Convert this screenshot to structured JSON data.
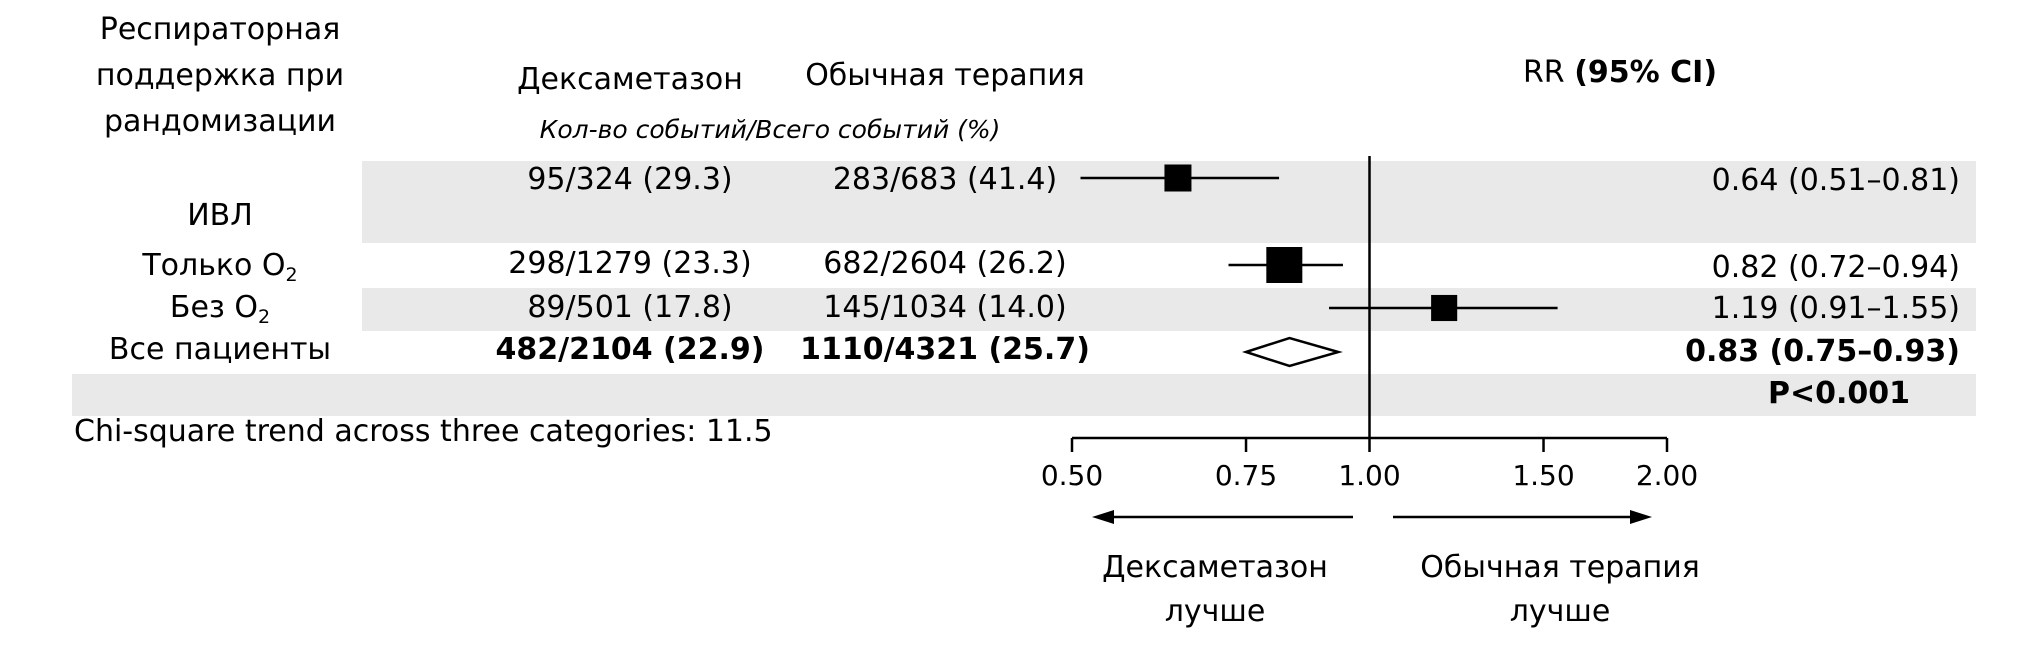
{
  "header": {
    "group_title_lines": [
      "Респираторная",
      "поддержка при",
      "рандомизации"
    ],
    "col_dex": "Дексаметазон",
    "col_usual": "Обычная терапия",
    "col_subtitle": "Кол-во событий/Всего событий (%)",
    "col_rr_prefix": "RR",
    "col_rr_ci": "(95% CI)"
  },
  "chart_data": {
    "type": "forest",
    "xscale": "log",
    "xlim": [
      0.5,
      2.0
    ],
    "reference_line": 1.0,
    "x_ticks": [
      "0.50",
      "0.75",
      "1.00",
      "1.50",
      "2.00"
    ],
    "rows": [
      {
        "label": "ИВЛ",
        "label_sub": "",
        "dex": "95/324 (29.3)",
        "usual": "283/683 (41.4)",
        "rr": 0.64,
        "lo": 0.51,
        "hi": 0.81,
        "rr_text": "0.64 (0.51–0.81)",
        "marker": "square",
        "weight": 0.5,
        "shaded": true,
        "bold": false
      },
      {
        "label": "Только O",
        "label_sub": "2",
        "dex": "298/1279 (23.3)",
        "usual": "682/2604 (26.2)",
        "rr": 0.82,
        "lo": 0.72,
        "hi": 0.94,
        "rr_text": "0.82 (0.72–0.94)",
        "marker": "square",
        "weight": 1.0,
        "shaded": false,
        "bold": false
      },
      {
        "label": "Без O",
        "label_sub": "2",
        "dex": "89/501 (17.8)",
        "usual": "145/1034 (14.0)",
        "rr": 1.19,
        "lo": 0.91,
        "hi": 1.55,
        "rr_text": "1.19 (0.91–1.55)",
        "marker": "square",
        "weight": 0.45,
        "shaded": true,
        "bold": false
      },
      {
        "label": "Все пациенты",
        "label_sub": "",
        "dex": "482/2104 (22.9)",
        "usual": "1110/4321 (25.7)",
        "rr": 0.83,
        "lo": 0.75,
        "hi": 0.93,
        "rr_text": "0.83 (0.75–0.93)",
        "marker": "diamond",
        "weight": 1.0,
        "shaded": false,
        "bold": true
      }
    ],
    "p_value": "P<0.001",
    "trend_note": "Chi-square trend across three categories: 11.5",
    "favors_left": [
      "Дексаметазон",
      "лучше"
    ],
    "favors_right": [
      "Обычная терапия",
      "лучше"
    ]
  }
}
